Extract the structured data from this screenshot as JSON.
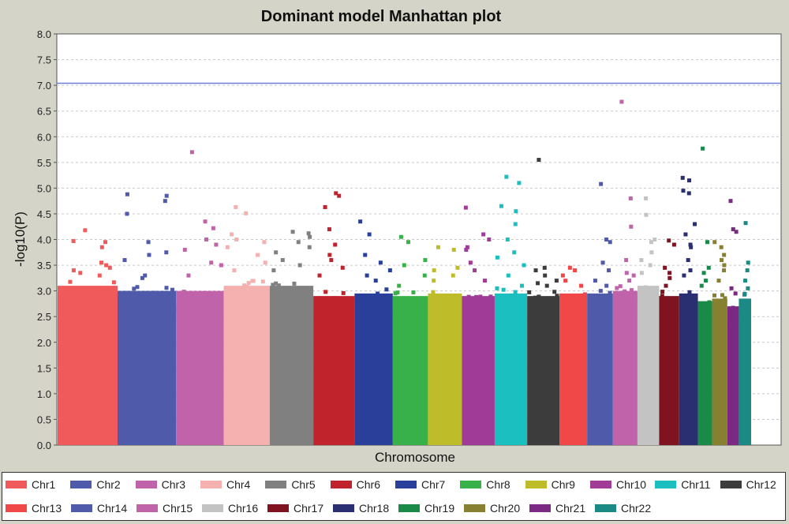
{
  "chart_data": {
    "type": "scatter",
    "title": "Dominant model Manhattan plot",
    "xlabel": "Chromosome",
    "ylabel": "-log10(P)",
    "ylim": [
      0,
      8
    ],
    "yticks": [
      "0.0",
      "0.5",
      "1.0",
      "1.5",
      "2.0",
      "2.5",
      "3.0",
      "3.5",
      "4.0",
      "4.5",
      "5.0",
      "5.5",
      "6.0",
      "6.5",
      "7.0",
      "7.5",
      "8.0"
    ],
    "threshold": 7.04,
    "grid": true,
    "legend_position": "bottom",
    "series": [
      {
        "name": "Chr1",
        "color": "#f05a5a",
        "bulk_top": 3.1,
        "values": [
          4.18,
          3.85,
          3.95,
          3.97,
          3.55,
          3.45,
          3.4,
          3.5,
          3.35,
          3.3
        ]
      },
      {
        "name": "Chr2",
        "color": "#4f5aaa",
        "bulk_top": 3.0,
        "values": [
          4.88,
          4.85,
          4.75,
          4.5,
          3.95,
          3.75,
          3.7,
          3.6,
          3.3,
          3.25
        ]
      },
      {
        "name": "Chr3",
        "color": "#c063aa",
        "bulk_top": 3.0,
        "values": [
          5.7,
          4.35,
          4.22,
          4.0,
          3.9,
          3.8,
          3.55,
          3.5,
          3.3
        ]
      },
      {
        "name": "Chr4",
        "color": "#f5b0b0",
        "bulk_top": 3.1,
        "values": [
          4.63,
          4.51,
          4.1,
          4.0,
          3.95,
          3.85,
          3.7,
          3.55,
          3.4
        ]
      },
      {
        "name": "Chr5",
        "color": "#808080",
        "bulk_top": 3.1,
        "values": [
          4.15,
          4.12,
          4.05,
          3.95,
          3.85,
          3.75,
          3.6,
          3.5,
          3.4
        ]
      },
      {
        "name": "Chr6",
        "color": "#c0232b",
        "bulk_top": 2.9,
        "values": [
          4.9,
          4.85,
          4.63,
          4.2,
          3.9,
          3.7,
          3.6,
          3.45,
          3.3
        ]
      },
      {
        "name": "Chr7",
        "color": "#293f9a",
        "bulk_top": 2.95,
        "values": [
          4.35,
          4.1,
          3.7,
          3.55,
          3.4,
          3.3,
          3.2
        ]
      },
      {
        "name": "Chr8",
        "color": "#39b14a",
        "bulk_top": 2.9,
        "values": [
          4.05,
          3.95,
          3.6,
          3.5,
          3.3,
          3.1
        ]
      },
      {
        "name": "Chr9",
        "color": "#bfbc2a",
        "bulk_top": 2.95,
        "values": [
          3.85,
          3.8,
          3.45,
          3.4,
          3.3,
          3.2
        ]
      },
      {
        "name": "Chr10",
        "color": "#a03c98",
        "bulk_top": 2.9,
        "values": [
          4.62,
          4.1,
          4.0,
          3.85,
          3.8,
          3.55,
          3.4,
          3.2
        ]
      },
      {
        "name": "Chr11",
        "color": "#1bbfc0",
        "bulk_top": 2.95,
        "values": [
          5.22,
          5.1,
          4.65,
          4.55,
          4.3,
          4.0,
          3.75,
          3.65,
          3.5,
          3.3,
          3.1
        ]
      },
      {
        "name": "Chr12",
        "color": "#3c3c3c",
        "bulk_top": 2.9,
        "values": [
          5.55,
          3.45,
          3.4,
          3.3,
          3.2,
          3.15,
          3.1
        ]
      },
      {
        "name": "Chr13",
        "color": "#f04848",
        "bulk_top": 2.95,
        "values": [
          3.45,
          3.4,
          3.3,
          3.2,
          3.1
        ]
      },
      {
        "name": "Chr14",
        "color": "#4f5aaa",
        "bulk_top": 2.95,
        "values": [
          5.08,
          4.0,
          3.95,
          3.55,
          3.4,
          3.2,
          3.1
        ]
      },
      {
        "name": "Chr15",
        "color": "#c063aa",
        "bulk_top": 3.0,
        "values": [
          6.68,
          4.8,
          4.25,
          3.6,
          3.35,
          3.3,
          3.2
        ]
      },
      {
        "name": "Chr16",
        "color": "#c3c3c3",
        "bulk_top": 3.1,
        "values": [
          4.8,
          4.48,
          4.0,
          3.95,
          3.75,
          3.6,
          3.5,
          3.35
        ]
      },
      {
        "name": "Chr17",
        "color": "#7f1420",
        "bulk_top": 2.9,
        "values": [
          3.98,
          3.9,
          3.45,
          3.35,
          3.25,
          3.1
        ]
      },
      {
        "name": "Chr18",
        "color": "#2a2f72",
        "bulk_top": 2.95,
        "values": [
          5.2,
          5.15,
          4.95,
          4.9,
          4.3,
          4.1,
          3.9,
          3.85,
          3.6,
          3.4,
          3.3
        ]
      },
      {
        "name": "Chr19",
        "color": "#1a8a48",
        "bulk_top": 2.8,
        "values": [
          5.77,
          3.95,
          3.45,
          3.35,
          3.2,
          3.1
        ]
      },
      {
        "name": "Chr20",
        "color": "#878030",
        "bulk_top": 2.85,
        "values": [
          3.95,
          3.85,
          3.7,
          3.6,
          3.5,
          3.4,
          3.2
        ]
      },
      {
        "name": "Chr21",
        "color": "#7a2a82",
        "bulk_top": 2.7,
        "values": [
          4.75,
          4.2,
          4.15,
          3.05,
          2.95
        ]
      },
      {
        "name": "Chr22",
        "color": "#1b8a84",
        "bulk_top": 2.85,
        "values": [
          4.32,
          3.55,
          3.4,
          3.2,
          3.05
        ]
      }
    ]
  }
}
